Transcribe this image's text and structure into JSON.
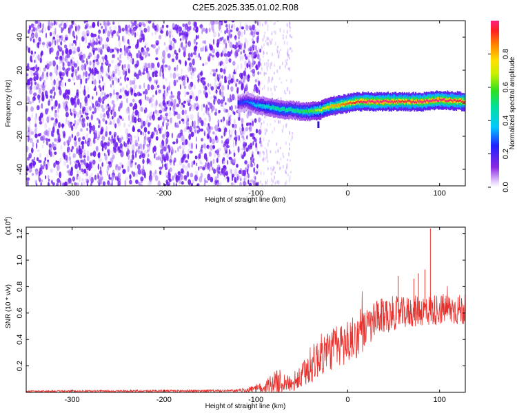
{
  "title": "C2E5.2025.335.01.02.R08",
  "chart_data": [
    {
      "type": "heatmap",
      "name": "spectrogram",
      "xlabel": "Height of straight line (km)",
      "ylabel": "Frequency (Hz)",
      "xlim": [
        -350,
        128
      ],
      "ylim": [
        -50,
        50
      ],
      "xticks": [
        -300,
        -200,
        -100,
        0,
        100
      ],
      "yticks": [
        -40,
        -20,
        0,
        20,
        40
      ],
      "noise_region_x": [
        -350,
        -95
      ],
      "sparse_region_x": [
        -95,
        -60
      ],
      "ridge": {
        "x": [
          -120,
          -110,
          -100,
          -90,
          -80,
          -70,
          -60,
          -50,
          -40,
          -30,
          -20,
          -10,
          0,
          10,
          20,
          40,
          60,
          80,
          100,
          128
        ],
        "freq": [
          0,
          1,
          -1,
          -2,
          -3,
          -4,
          -4,
          -5,
          -5,
          -4,
          -2,
          -1,
          0,
          1,
          1,
          1,
          1,
          1,
          2,
          1
        ],
        "amplitude": [
          0.25,
          0.3,
          0.4,
          0.45,
          0.5,
          0.5,
          0.5,
          0.55,
          0.6,
          0.7,
          0.8,
          0.85,
          0.9,
          0.95,
          1.0,
          1.0,
          0.95,
          1.0,
          1.0,
          0.95
        ]
      },
      "colorbar": {
        "label": "Normalized spectral amplitude",
        "ticks": [
          0.0,
          0.2,
          0.4,
          0.6,
          0.8
        ],
        "range": [
          0,
          1
        ]
      }
    },
    {
      "type": "line",
      "name": "snr",
      "xlabel": "Height of straight line (km)",
      "ylabel": "SNR (10 * v/v)",
      "multiplier_label": "(x10",
      "multiplier_exp": "4",
      "multiplier_close": ")",
      "xlim": [
        -350,
        128
      ],
      "ylim": [
        0,
        1.25
      ],
      "xticks": [
        -300,
        -200,
        -100,
        0,
        100
      ],
      "yticks": [
        0.2,
        0.4,
        0.6,
        0.8,
        1.0,
        1.2
      ],
      "series_color": "#e8302c",
      "envelope": {
        "x": [
          -350,
          -120,
          -95,
          -85,
          -75,
          -65,
          -60,
          -50,
          -40,
          -30,
          -20,
          -10,
          0,
          10,
          20,
          30,
          40,
          50,
          60,
          70,
          80,
          90,
          100,
          110,
          128
        ],
        "mean": [
          0.008,
          0.012,
          0.03,
          0.06,
          0.08,
          0.07,
          0.05,
          0.12,
          0.2,
          0.28,
          0.32,
          0.35,
          0.38,
          0.42,
          0.48,
          0.54,
          0.58,
          0.6,
          0.6,
          0.61,
          0.62,
          0.62,
          0.63,
          0.63,
          0.62
        ],
        "spread": [
          0.006,
          0.01,
          0.04,
          0.07,
          0.1,
          0.06,
          0.05,
          0.1,
          0.14,
          0.16,
          0.16,
          0.17,
          0.18,
          0.16,
          0.15,
          0.15,
          0.14,
          0.13,
          0.12,
          0.12,
          0.12,
          0.12,
          0.12,
          0.12,
          0.12
        ]
      },
      "spikes": [
        {
          "x": 90,
          "y": 1.24
        },
        {
          "x": 84,
          "y": 0.93
        },
        {
          "x": 77,
          "y": 0.9
        },
        {
          "x": 55,
          "y": 0.88
        },
        {
          "x": 72,
          "y": 0.86
        }
      ]
    }
  ],
  "colors": {
    "frame": "#000000",
    "noise": "#7a2af2",
    "ridge_core": "#ff1a2a"
  }
}
